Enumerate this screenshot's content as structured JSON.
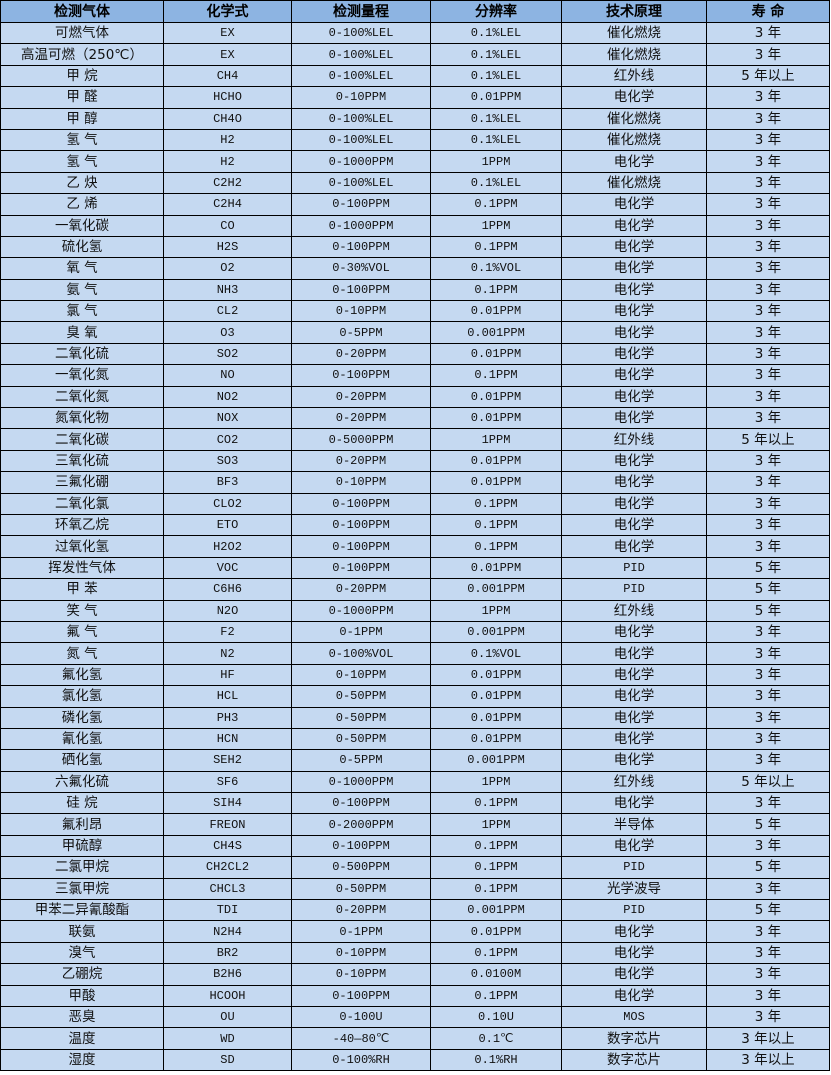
{
  "colors": {
    "header_bg": "#8db4e2",
    "row_bg": "#c5d9f1",
    "border": "#000000"
  },
  "headers": [
    "检测气体",
    "化学式",
    "检测量程",
    "分辨率",
    "技术原理",
    "寿 命"
  ],
  "rows": [
    [
      "可燃气体",
      "EX",
      "0-100%LEL",
      "0.1%LEL",
      "催化燃烧",
      "3 年"
    ],
    [
      "高温可燃（250℃）",
      "EX",
      "0-100%LEL",
      "0.1%LEL",
      "催化燃烧",
      "3 年"
    ],
    [
      "甲 烷",
      "CH4",
      "0-100%LEL",
      "0.1%LEL",
      "红外线",
      "5 年以上"
    ],
    [
      "甲 醛",
      "HCHO",
      "0-10PPM",
      "0.01PPM",
      "电化学",
      "3 年"
    ],
    [
      "甲 醇",
      "CH4O",
      "0-100%LEL",
      "0.1%LEL",
      "催化燃烧",
      "3 年"
    ],
    [
      "氢 气",
      "H2",
      "0-100%LEL",
      "0.1%LEL",
      "催化燃烧",
      "3 年"
    ],
    [
      "氢 气",
      "H2",
      "0-1000PPM",
      "1PPM",
      "电化学",
      "3 年"
    ],
    [
      "乙 炔",
      "C2H2",
      "0-100%LEL",
      "0.1%LEL",
      "催化燃烧",
      "3 年"
    ],
    [
      "乙 烯",
      "C2H4",
      "0-100PPM",
      "0.1PPM",
      "电化学",
      "3 年"
    ],
    [
      "一氧化碳",
      "CO",
      "0-1000PPM",
      "1PPM",
      "电化学",
      "3 年"
    ],
    [
      "硫化氢",
      "H2S",
      "0-100PPM",
      "0.1PPM",
      "电化学",
      "3 年"
    ],
    [
      "氧 气",
      "O2",
      "0-30%VOL",
      "0.1%VOL",
      "电化学",
      "3 年"
    ],
    [
      "氨 气",
      "NH3",
      "0-100PPM",
      "0.1PPM",
      "电化学",
      "3 年"
    ],
    [
      "氯 气",
      "CL2",
      "0-10PPM",
      "0.01PPM",
      "电化学",
      "3 年"
    ],
    [
      "臭 氧",
      "O3",
      "0-5PPM",
      "0.001PPM",
      "电化学",
      "3 年"
    ],
    [
      "二氧化硫",
      "SO2",
      "0-20PPM",
      "0.01PPM",
      "电化学",
      "3 年"
    ],
    [
      "一氧化氮",
      "NO",
      "0-100PPM",
      "0.1PPM",
      "电化学",
      "3 年"
    ],
    [
      "二氧化氮",
      "NO2",
      "0-20PPM",
      "0.01PPM",
      "电化学",
      "3 年"
    ],
    [
      "氮氧化物",
      "NOX",
      "0-20PPM",
      "0.01PPM",
      "电化学",
      "3 年"
    ],
    [
      "二氧化碳",
      "CO2",
      "0-5000PPM",
      "1PPM",
      "红外线",
      "5 年以上"
    ],
    [
      "三氧化硫",
      "SO3",
      "0-20PPM",
      "0.01PPM",
      "电化学",
      "3 年"
    ],
    [
      "三氟化硼",
      "BF3",
      "0-10PPM",
      "0.01PPM",
      "电化学",
      "3 年"
    ],
    [
      "二氧化氯",
      "CLO2",
      "0-100PPM",
      "0.1PPM",
      "电化学",
      "3 年"
    ],
    [
      "环氧乙烷",
      "ETO",
      "0-100PPM",
      "0.1PPM",
      "电化学",
      "3 年"
    ],
    [
      "过氧化氢",
      "H2O2",
      "0-100PPM",
      "0.1PPM",
      "电化学",
      "3 年"
    ],
    [
      "挥发性气体",
      "VOC",
      "0-100PPM",
      "0.01PPM",
      "PID",
      "5 年"
    ],
    [
      "甲 苯",
      "C6H6",
      "0-20PPM",
      "0.001PPM",
      "PID",
      "5 年"
    ],
    [
      "笑 气",
      "N2O",
      "0-1000PPM",
      "1PPM",
      "红外线",
      "5 年"
    ],
    [
      "氟 气",
      "F2",
      "0-1PPM",
      "0.001PPM",
      "电化学",
      "3 年"
    ],
    [
      "氮 气",
      "N2",
      "0-100%VOL",
      "0.1%VOL",
      "电化学",
      "3 年"
    ],
    [
      "氟化氢",
      "HF",
      "0-10PPM",
      "0.01PPM",
      "电化学",
      "3 年"
    ],
    [
      "氯化氢",
      "HCL",
      "0-50PPM",
      "0.01PPM",
      "电化学",
      "3 年"
    ],
    [
      "磷化氢",
      "PH3",
      "0-50PPM",
      "0.01PPM",
      "电化学",
      "3 年"
    ],
    [
      "氰化氢",
      "HCN",
      "0-50PPM",
      "0.01PPM",
      "电化学",
      "3 年"
    ],
    [
      "硒化氢",
      "SEH2",
      "0-5PPM",
      "0.001PPM",
      "电化学",
      "3 年"
    ],
    [
      "六氟化硫",
      "SF6",
      "0-1000PPM",
      "1PPM",
      "红外线",
      "5 年以上"
    ],
    [
      "硅 烷",
      "SIH4",
      "0-100PPM",
      "0.1PPM",
      "电化学",
      "3 年"
    ],
    [
      "氟利昂",
      "FREON",
      "0-2000PPM",
      "1PPM",
      "半导体",
      "5 年"
    ],
    [
      "甲硫醇",
      "CH4S",
      "0-100PPM",
      "0.1PPM",
      "电化学",
      "3 年"
    ],
    [
      "二氯甲烷",
      "CH2CL2",
      "0-500PPM",
      "0.1PPM",
      "PID",
      "5 年"
    ],
    [
      "三氯甲烷",
      "CHCL3",
      "0-50PPM",
      "0.1PPM",
      "光学波导",
      "3 年"
    ],
    [
      "甲苯二异氰酸酯",
      "TDI",
      "0-20PPM",
      "0.001PPM",
      "PID",
      "5 年"
    ],
    [
      "联氨",
      "N2H4",
      "0-1PPM",
      "0.01PPM",
      "电化学",
      "3 年"
    ],
    [
      "溴气",
      "BR2",
      "0-10PPM",
      "0.1PPM",
      "电化学",
      "3 年"
    ],
    [
      "乙硼烷",
      "B2H6",
      "0-10PPM",
      "0.0100M",
      "电化学",
      "3 年"
    ],
    [
      "甲酸",
      "HCOOH",
      "0-100PPM",
      "0.1PPM",
      "电化学",
      "3 年"
    ],
    [
      "恶臭",
      "OU",
      "0-100U",
      "0.10U",
      "MOS",
      "3 年"
    ],
    [
      "温度",
      "WD",
      "-40—80℃",
      "0.1℃",
      "数字芯片",
      "3 年以上"
    ],
    [
      "湿度",
      "SD",
      "0-100%RH",
      "0.1%RH",
      "数字芯片",
      "3 年以上"
    ]
  ]
}
